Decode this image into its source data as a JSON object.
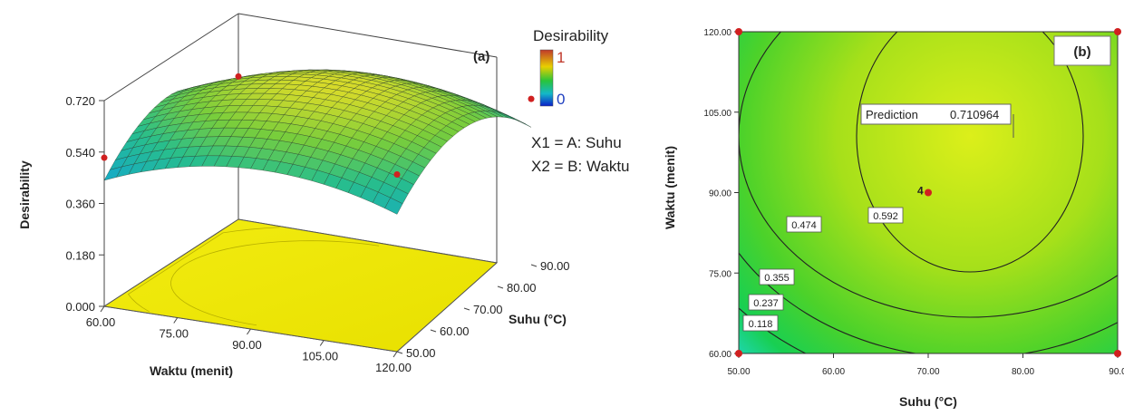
{
  "chart_data": [
    {
      "type": "surface",
      "panel_label": "(a)",
      "zlabel": "Desirability",
      "xlabel": "Waktu (menit)",
      "ylabel": "Suhu (°C)",
      "x_ticks": [
        "60.00",
        "75.00",
        "90.00",
        "105.00",
        "120.00"
      ],
      "y_ticks": [
        "50.00",
        "60.00",
        "70.00",
        "80.00",
        "90.00"
      ],
      "z_ticks": [
        "0.000",
        "0.180",
        "0.360",
        "0.540",
        "0.720"
      ],
      "x_range": [
        60,
        120
      ],
      "y_range": [
        50,
        90
      ],
      "z_range": [
        0,
        0.72
      ],
      "legend": {
        "title": "Desirability",
        "max_label": "1",
        "min_label": "0",
        "colors": [
          "#c0392b",
          "#e8d000",
          "#29c43a",
          "#14b8c8",
          "#0a1ec8"
        ]
      },
      "factors": [
        "X1 = A: Suhu",
        "X2 = B: Waktu"
      ],
      "design_points": [
        {
          "suhu": 50,
          "waktu": 60,
          "desirability": 0.52
        },
        {
          "suhu": 50,
          "waktu": 120,
          "desirability": 0.62
        },
        {
          "suhu": 90,
          "waktu": 120,
          "desirability": 0.58
        },
        {
          "suhu": 90,
          "waktu": 60,
          "desirability": 0.5
        },
        {
          "suhu": 70,
          "waktu": 90,
          "desirability": 0.71
        }
      ],
      "peak": 0.711,
      "min_value": 0.33
    },
    {
      "type": "contour",
      "panel_label": "(b)",
      "xlabel": "Suhu (°C)",
      "ylabel": "Waktu (menit)",
      "x_ticks": [
        "50.00",
        "60.00",
        "70.00",
        "80.00",
        "90.0"
      ],
      "y_ticks": [
        "60.00",
        "75.00",
        "90.00",
        "105.00",
        "120.00"
      ],
      "x_range": [
        50,
        90
      ],
      "y_range": [
        60,
        120
      ],
      "contour_levels": [
        "0.118",
        "0.237",
        "0.355",
        "0.474",
        "0.592"
      ],
      "prediction": {
        "label": "Prediction",
        "value": "0.710964",
        "x": 78,
        "y": 105
      },
      "center_point": {
        "label": "4",
        "x": 70,
        "y": 90
      },
      "design_points": [
        {
          "x": 50,
          "y": 60
        },
        {
          "x": 50,
          "y": 120
        },
        {
          "x": 90,
          "y": 120
        },
        {
          "x": 90,
          "y": 60
        },
        {
          "x": 70,
          "y": 90
        }
      ]
    }
  ]
}
